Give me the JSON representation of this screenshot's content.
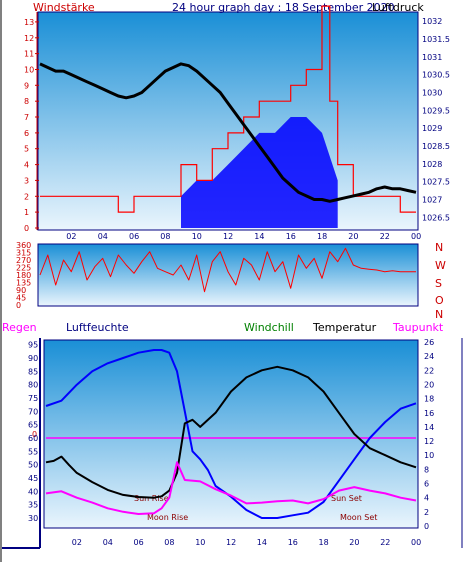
{
  "header": {
    "title": "24 hour graph day : 18 September 2020",
    "left_label": "Windstärke",
    "right_label": "Luftdruck"
  },
  "direction_letters": [
    "N",
    "W",
    "S",
    "O",
    "N"
  ],
  "lower_header": {
    "regen": "Regen",
    "luftfeuchte": "Luftfeuchte",
    "windchill": "Windchill",
    "temperatur": "Temperatur",
    "taupunkt": "Taupunkt"
  },
  "annotations": {
    "sun_rise": "Sun Rise",
    "moon_rise": "Moon Rise",
    "sun_set": "Sun Set",
    "moon_set": "Moon Set",
    "mid_rain_zero": "0"
  },
  "colors": {
    "wind": "#ff0000",
    "gust_fill": "#0000ff",
    "pressure": "#000000",
    "humidity": "#0000ff",
    "temperature": "#000000",
    "dewpoint": "#ff00ff",
    "windchill": "#008000",
    "regen": "#ff00ff",
    "axis_left": "#cc0000",
    "axis_right": "#000080",
    "sky_top": "#1a8fd6",
    "sky_bottom": "#e8f4fc"
  },
  "chart_data": [
    {
      "type": "line",
      "name": "wind_pressure",
      "x_ticks": [
        "02",
        "04",
        "06",
        "08",
        "10",
        "12",
        "14",
        "16",
        "18",
        "20",
        "22",
        "00"
      ],
      "y_left_ticks": [
        0,
        1,
        2,
        3,
        4,
        5,
        6,
        7,
        8,
        9,
        10,
        11,
        12,
        13
      ],
      "y_left_lim": [
        0,
        13.5
      ],
      "y_right_ticks": [
        "1026.5",
        "1027",
        "1027.5",
        "1028",
        "1028.5",
        "1029",
        "1029.5",
        "1030",
        "1030.5",
        "1031",
        "1031.5",
        "1032"
      ],
      "y_right_lim": [
        1026.2,
        1032.2
      ],
      "pressure": {
        "x": [
          0,
          0.5,
          1,
          1.5,
          2,
          2.5,
          3,
          3.5,
          4,
          4.5,
          5,
          5.5,
          6,
          6.5,
          7,
          7.5,
          8,
          8.5,
          9,
          9.5,
          10,
          10.5,
          11,
          11.5,
          12,
          12.5,
          13,
          13.5,
          14,
          14.5,
          15,
          15.5,
          16,
          16.5,
          17,
          17.5,
          18,
          18.5,
          19,
          19.5,
          20,
          20.5,
          21,
          21.5,
          22,
          22.5,
          23,
          23.5,
          24
        ],
        "y": [
          1030.8,
          1030.7,
          1030.6,
          1030.6,
          1030.5,
          1030.4,
          1030.3,
          1030.2,
          1030.1,
          1030.0,
          1029.9,
          1029.85,
          1029.9,
          1030.0,
          1030.2,
          1030.4,
          1030.6,
          1030.7,
          1030.8,
          1030.75,
          1030.6,
          1030.4,
          1030.2,
          1030.0,
          1029.7,
          1029.4,
          1029.1,
          1028.8,
          1028.5,
          1028.2,
          1027.9,
          1027.6,
          1027.4,
          1027.2,
          1027.1,
          1027.0,
          1027.0,
          1026.95,
          1027.0,
          1027.05,
          1027.1,
          1027.15,
          1027.2,
          1027.3,
          1027.35,
          1027.3,
          1027.3,
          1027.25,
          1027.2
        ]
      },
      "wind_speed_envelope": {
        "x": [
          0,
          1,
          2,
          3,
          4,
          5,
          6,
          7,
          8,
          9,
          10,
          11,
          12,
          13,
          14,
          15,
          16,
          17,
          18,
          18.5,
          19,
          20,
          21,
          22,
          23,
          24
        ],
        "y": [
          2,
          2,
          2,
          2,
          2,
          1,
          2,
          2,
          2,
          4,
          3,
          5,
          6,
          7,
          8,
          8,
          9,
          10,
          14,
          8,
          4,
          2,
          2,
          2,
          1,
          1
        ]
      },
      "gust_envelope": {
        "x": [
          9,
          10,
          11,
          12,
          13,
          14,
          15,
          16,
          17,
          18,
          19
        ],
        "y": [
          2,
          3,
          3,
          4,
          5,
          6,
          6,
          7,
          7,
          6,
          3
        ]
      }
    },
    {
      "type": "line",
      "name": "wind_direction",
      "y_ticks": [
        "0",
        "45",
        "90",
        "135",
        "180",
        "225",
        "270",
        "315",
        "360"
      ],
      "y_lim": [
        0,
        360
      ],
      "x": [
        0,
        0.5,
        1,
        1.5,
        2,
        2.5,
        3,
        3.5,
        4,
        4.5,
        5,
        5.5,
        6,
        6.5,
        7,
        7.5,
        8,
        8.5,
        9,
        9.5,
        10,
        10.5,
        11,
        11.5,
        12,
        12.5,
        13,
        13.5,
        14,
        14.5,
        15,
        15.5,
        16,
        16.5,
        17,
        17.5,
        18,
        18.5,
        19,
        19.5,
        20,
        20.5,
        21,
        21.5,
        22,
        22.5,
        23,
        23.5,
        24
      ],
      "y": [
        180,
        300,
        120,
        270,
        200,
        320,
        150,
        230,
        280,
        170,
        300,
        240,
        190,
        260,
        320,
        220,
        200,
        180,
        240,
        150,
        300,
        80,
        260,
        320,
        200,
        120,
        280,
        240,
        150,
        320,
        200,
        260,
        100,
        300,
        220,
        280,
        160,
        320,
        260,
        340,
        240,
        220,
        215,
        210,
        200,
        205,
        200,
        200,
        200
      ]
    },
    {
      "type": "line",
      "name": "humidity_temperature",
      "x_ticks": [
        "02",
        "04",
        "06",
        "08",
        "10",
        "12",
        "14",
        "16",
        "18",
        "20",
        "22",
        "00"
      ],
      "y_left_ticks": [
        30,
        35,
        40,
        45,
        50,
        55,
        60,
        65,
        70,
        75,
        80,
        85,
        90,
        95
      ],
      "y_left_lim": [
        27,
        96
      ],
      "y_right_ticks": [
        0,
        2,
        4,
        6,
        8,
        10,
        12,
        14,
        16,
        18,
        20,
        22,
        24,
        26
      ],
      "y_right_lim": [
        0,
        26
      ],
      "humidity": {
        "x": [
          0,
          1,
          2,
          3,
          4,
          5,
          6,
          7,
          7.5,
          8,
          8.5,
          9,
          9.5,
          10,
          10.5,
          11,
          12,
          13,
          14,
          15,
          16,
          17,
          18,
          19,
          20,
          21,
          22,
          23,
          24
        ],
        "y": [
          72,
          74,
          80,
          85,
          88,
          90,
          92,
          93,
          93,
          92,
          85,
          70,
          55,
          52,
          48,
          42,
          38,
          33,
          30,
          30,
          31,
          32,
          36,
          44,
          52,
          60,
          66,
          71,
          73
        ]
      },
      "temperature": {
        "x": [
          0,
          0.5,
          1,
          1.5,
          2,
          3,
          4,
          5,
          6,
          7,
          7.5,
          8,
          8.5,
          9,
          9.5,
          10,
          11,
          12,
          13,
          14,
          15,
          16,
          17,
          18,
          19,
          20,
          21,
          22,
          23,
          24
        ],
        "y": [
          9.0,
          9.2,
          9.8,
          8.6,
          7.5,
          6.2,
          5.1,
          4.4,
          4.1,
          4.0,
          4.2,
          5.0,
          7.5,
          14.5,
          15.0,
          14.0,
          16.0,
          19.0,
          21.0,
          22.0,
          22.5,
          22.0,
          21.0,
          19.0,
          16.0,
          13.0,
          11.0,
          10.0,
          9.0,
          8.3
        ]
      },
      "dewpoint": {
        "x": [
          0,
          1,
          2,
          3,
          4,
          5,
          6,
          7,
          7.5,
          8,
          8.5,
          9,
          10,
          11,
          12,
          13,
          14,
          15,
          16,
          17,
          18,
          19,
          20,
          21,
          22,
          23,
          24
        ],
        "y": [
          4.6,
          4.9,
          4.0,
          3.3,
          2.5,
          2.0,
          1.7,
          1.8,
          2.5,
          4.0,
          9.0,
          6.5,
          6.3,
          5.2,
          4.3,
          3.2,
          3.3,
          3.5,
          3.6,
          3.2,
          3.8,
          5.0,
          5.5,
          5.0,
          4.6,
          4.0,
          3.6
        ]
      },
      "regen_zero_line": 60
    }
  ]
}
